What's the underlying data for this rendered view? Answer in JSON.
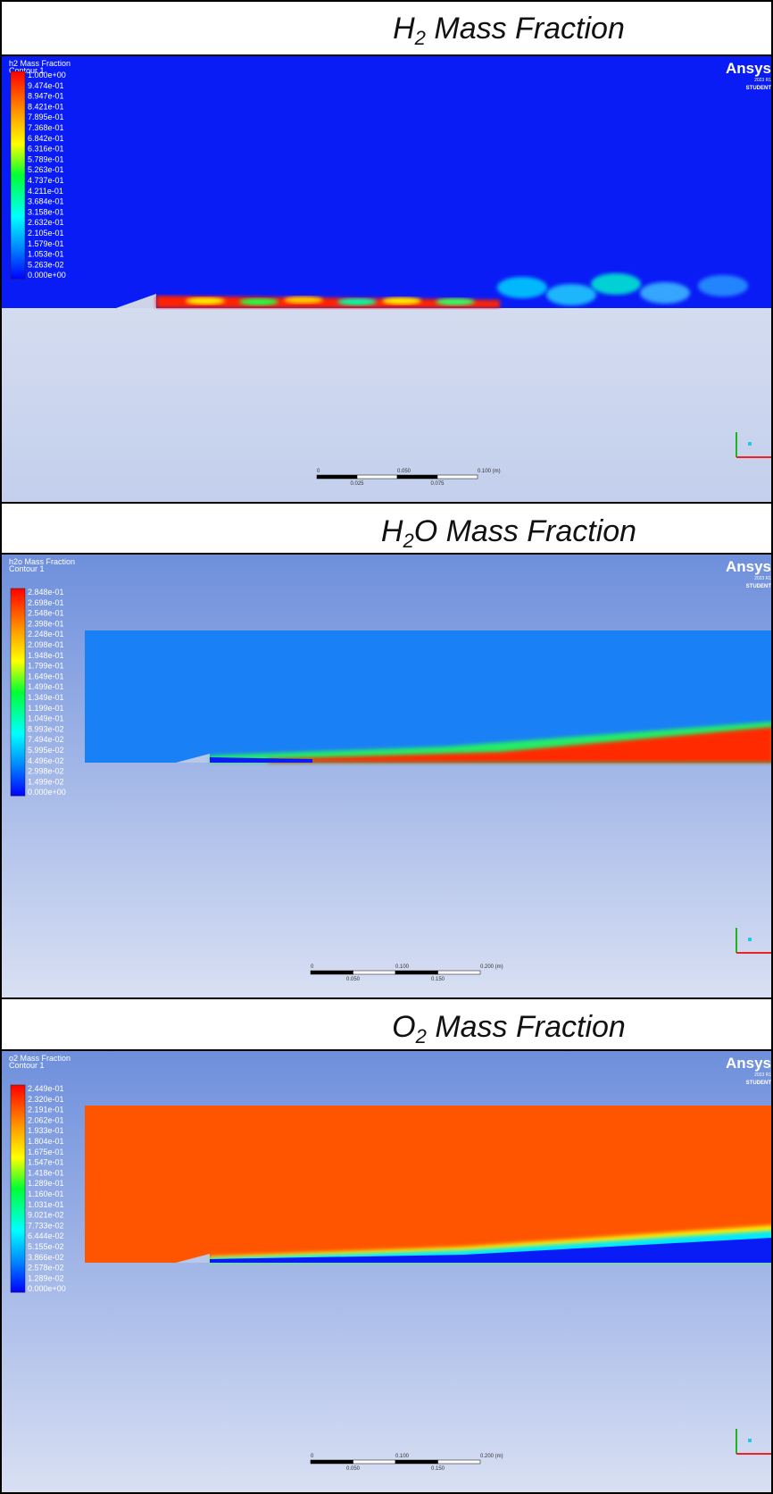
{
  "panels": [
    {
      "title": {
        "pre": "H",
        "sub": "2",
        "post": " Mass Fraction"
      },
      "legend": {
        "title": "h2 Mass Fraction",
        "subtitle": "Contour 1",
        "labels": [
          "1.000e+00",
          "9.474e-01",
          "8.947e-01",
          "8.421e-01",
          "7.895e-01",
          "7.368e-01",
          "6.842e-01",
          "6.316e-01",
          "5.789e-01",
          "5.263e-01",
          "4.737e-01",
          "4.211e-01",
          "3.684e-01",
          "3.158e-01",
          "2.632e-01",
          "2.105e-01",
          "1.579e-01",
          "1.053e-01",
          "5.263e-02",
          "0.000e+00"
        ]
      },
      "scale_bar": {
        "top": [
          "0",
          "0.050",
          "0.100 (m)"
        ],
        "bottom": [
          "0.025",
          "0.075"
        ]
      },
      "logo": {
        "name": "Ansys",
        "version": "2023 R1",
        "edition": "STUDENT"
      }
    },
    {
      "title": {
        "pre": "H",
        "sub": "2",
        "post": "O Mass Fraction"
      },
      "legend": {
        "title": "h2o Mass Fraction",
        "subtitle": "Contour 1",
        "labels": [
          "2.848e-01",
          "2.698e-01",
          "2.548e-01",
          "2.398e-01",
          "2.248e-01",
          "2.098e-01",
          "1.948e-01",
          "1.799e-01",
          "1.649e-01",
          "1.499e-01",
          "1.349e-01",
          "1.199e-01",
          "1.049e-01",
          "8.993e-02",
          "7.494e-02",
          "5.995e-02",
          "4.496e-02",
          "2.998e-02",
          "1.499e-02",
          "0.000e+00"
        ]
      },
      "scale_bar": {
        "top": [
          "0",
          "0.100",
          "0.200 (m)"
        ],
        "bottom": [
          "0.050",
          "0.150"
        ]
      },
      "logo": {
        "name": "Ansys",
        "version": "2023 R1",
        "edition": "STUDENT"
      }
    },
    {
      "title": {
        "pre": "O",
        "sub": "2",
        "post": " Mass Fraction"
      },
      "legend": {
        "title": "o2 Mass Fraction",
        "subtitle": "Contour 1",
        "labels": [
          "2.449e-01",
          "2.320e-01",
          "2.191e-01",
          "2.062e-01",
          "1.933e-01",
          "1.804e-01",
          "1.675e-01",
          "1.547e-01",
          "1.418e-01",
          "1.289e-01",
          "1.160e-01",
          "1.031e-01",
          "9.021e-02",
          "7.733e-02",
          "6.444e-02",
          "5.155e-02",
          "3.866e-02",
          "2.578e-02",
          "1.289e-02",
          "0.000e+00"
        ]
      },
      "scale_bar": {
        "top": [
          "0",
          "0.100",
          "0.200 (m)"
        ],
        "bottom": [
          "0.050",
          "0.150"
        ]
      },
      "logo": {
        "name": "Ansys",
        "version": "2023 R1",
        "edition": "STUDENT"
      }
    }
  ]
}
